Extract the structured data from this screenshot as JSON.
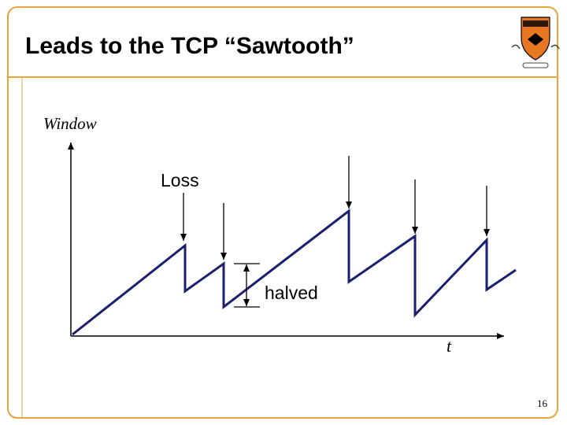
{
  "header": {
    "title": "Leads to the TCP “Sawtooth”"
  },
  "diagram": {
    "y_axis_label": "Window",
    "x_axis_label": "t",
    "loss_label": "Loss",
    "halved_label": "halved"
  },
  "footer": {
    "page_number": "16"
  }
}
